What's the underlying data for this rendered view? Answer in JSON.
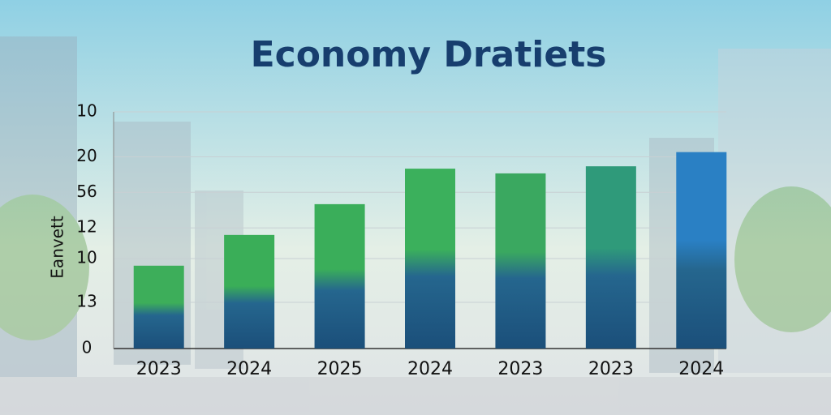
{
  "chart_data": {
    "type": "bar",
    "title": "Economy Dratiets",
    "y_label": "Eanvett",
    "categories": [
      "2023",
      "2024",
      "2025",
      "2024",
      "2023",
      "2023",
      "2024"
    ],
    "values": [
      35,
      48,
      61,
      76,
      74,
      77,
      83
    ],
    "colors": [
      "#3dae5a",
      "#3aae58",
      "#3aae5a",
      "#3bb05c",
      "#3aa860",
      "#2f9a7a",
      "#2a80c4"
    ],
    "ylim": [
      0,
      100
    ],
    "yticks": [
      0,
      {
        "value": 19.5,
        "label": "13"
      },
      {
        "value": 38,
        "label": "10"
      },
      {
        "value": 51,
        "label": "12"
      },
      {
        "value": 66,
        "label": "56"
      },
      {
        "value": 81,
        "label": "20"
      },
      {
        "value": 100,
        "label": "10"
      }
    ],
    "grid": true
  }
}
